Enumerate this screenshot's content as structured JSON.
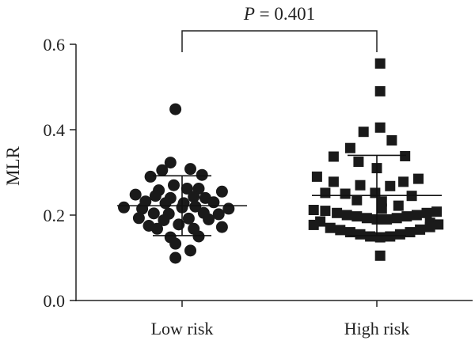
{
  "chart_data": {
    "type": "scatter",
    "subtype": "dot-plot",
    "title": "",
    "xlabel": "",
    "ylabel": "MLR",
    "ylim": [
      0,
      0.6
    ],
    "yticks": [
      0.0,
      0.2,
      0.4,
      0.6
    ],
    "ytick_labels": [
      "0.0",
      "0.2",
      "0.4",
      "0.6"
    ],
    "categories": [
      "Low risk",
      "High risk"
    ],
    "grid": false,
    "annotation": {
      "prefix": "P",
      "text": " = 0.401"
    },
    "series": [
      {
        "category": "Low risk",
        "marker": "circle",
        "color": "#1a1a1a",
        "mean": 0.222,
        "sd_upper": 0.292,
        "sd_lower": 0.152,
        "points": [
          {
            "x": -0.04,
            "y": 0.448
          },
          {
            "x": -0.07,
            "y": 0.323
          },
          {
            "x": 0.05,
            "y": 0.308
          },
          {
            "x": -0.12,
            "y": 0.305
          },
          {
            "x": 0.12,
            "y": 0.294
          },
          {
            "x": -0.19,
            "y": 0.29
          },
          {
            "x": -0.05,
            "y": 0.27
          },
          {
            "x": 0.03,
            "y": 0.262
          },
          {
            "x": 0.1,
            "y": 0.262
          },
          {
            "x": -0.14,
            "y": 0.258
          },
          {
            "x": 0.24,
            "y": 0.255
          },
          {
            "x": -0.28,
            "y": 0.248
          },
          {
            "x": -0.16,
            "y": 0.245
          },
          {
            "x": -0.07,
            "y": 0.24
          },
          {
            "x": 0.07,
            "y": 0.243
          },
          {
            "x": 0.14,
            "y": 0.24
          },
          {
            "x": -0.22,
            "y": 0.232
          },
          {
            "x": -0.1,
            "y": 0.228
          },
          {
            "x": 0.01,
            "y": 0.228
          },
          {
            "x": 0.19,
            "y": 0.23
          },
          {
            "x": -0.35,
            "y": 0.218
          },
          {
            "x": -0.24,
            "y": 0.215
          },
          {
            "x": 0.0,
            "y": 0.218
          },
          {
            "x": 0.08,
            "y": 0.22
          },
          {
            "x": 0.28,
            "y": 0.215
          },
          {
            "x": -0.17,
            "y": 0.204
          },
          {
            "x": -0.08,
            "y": 0.203
          },
          {
            "x": 0.13,
            "y": 0.205
          },
          {
            "x": 0.22,
            "y": 0.202
          },
          {
            "x": -0.26,
            "y": 0.193
          },
          {
            "x": -0.11,
            "y": 0.188
          },
          {
            "x": 0.04,
            "y": 0.192
          },
          {
            "x": 0.16,
            "y": 0.19
          },
          {
            "x": -0.2,
            "y": 0.175
          },
          {
            "x": -0.02,
            "y": 0.178
          },
          {
            "x": 0.24,
            "y": 0.172
          },
          {
            "x": -0.15,
            "y": 0.168
          },
          {
            "x": 0.07,
            "y": 0.168
          },
          {
            "x": -0.07,
            "y": 0.148
          },
          {
            "x": 0.1,
            "y": 0.15
          },
          {
            "x": -0.04,
            "y": 0.133
          },
          {
            "x": 0.05,
            "y": 0.117
          },
          {
            "x": -0.04,
            "y": 0.1
          }
        ]
      },
      {
        "category": "High risk",
        "marker": "square",
        "color": "#1a1a1a",
        "mean": 0.246,
        "sd_upper": 0.34,
        "sd_lower": 0.152,
        "points": [
          {
            "x": 0.02,
            "y": 0.555
          },
          {
            "x": 0.02,
            "y": 0.49
          },
          {
            "x": 0.02,
            "y": 0.405
          },
          {
            "x": -0.08,
            "y": 0.395
          },
          {
            "x": 0.09,
            "y": 0.375
          },
          {
            "x": -0.16,
            "y": 0.357
          },
          {
            "x": -0.26,
            "y": 0.337
          },
          {
            "x": 0.17,
            "y": 0.338
          },
          {
            "x": -0.11,
            "y": 0.325
          },
          {
            "x": 0.0,
            "y": 0.31
          },
          {
            "x": -0.36,
            "y": 0.29
          },
          {
            "x": 0.25,
            "y": 0.285
          },
          {
            "x": -0.26,
            "y": 0.278
          },
          {
            "x": 0.16,
            "y": 0.278
          },
          {
            "x": -0.1,
            "y": 0.27
          },
          {
            "x": 0.08,
            "y": 0.268
          },
          {
            "x": -0.31,
            "y": 0.252
          },
          {
            "x": -0.19,
            "y": 0.25
          },
          {
            "x": -0.01,
            "y": 0.252
          },
          {
            "x": 0.21,
            "y": 0.245
          },
          {
            "x": -0.12,
            "y": 0.235
          },
          {
            "x": 0.03,
            "y": 0.232
          },
          {
            "x": 0.13,
            "y": 0.222
          },
          {
            "x": 0.03,
            "y": 0.215
          },
          {
            "x": -0.38,
            "y": 0.212
          },
          {
            "x": -0.31,
            "y": 0.21
          },
          {
            "x": -0.24,
            "y": 0.205
          },
          {
            "x": -0.18,
            "y": 0.2
          },
          {
            "x": -0.12,
            "y": 0.197
          },
          {
            "x": -0.06,
            "y": 0.193
          },
          {
            "x": 0.0,
            "y": 0.19
          },
          {
            "x": 0.06,
            "y": 0.19
          },
          {
            "x": 0.12,
            "y": 0.193
          },
          {
            "x": 0.18,
            "y": 0.197
          },
          {
            "x": 0.24,
            "y": 0.2
          },
          {
            "x": 0.3,
            "y": 0.205
          },
          {
            "x": 0.36,
            "y": 0.208
          },
          {
            "x": -0.34,
            "y": 0.185
          },
          {
            "x": 0.32,
            "y": 0.182
          },
          {
            "x": -0.38,
            "y": 0.177
          },
          {
            "x": -0.28,
            "y": 0.17
          },
          {
            "x": -0.22,
            "y": 0.165
          },
          {
            "x": -0.16,
            "y": 0.16
          },
          {
            "x": -0.1,
            "y": 0.155
          },
          {
            "x": -0.04,
            "y": 0.15
          },
          {
            "x": 0.02,
            "y": 0.148
          },
          {
            "x": 0.08,
            "y": 0.15
          },
          {
            "x": 0.14,
            "y": 0.155
          },
          {
            "x": 0.2,
            "y": 0.16
          },
          {
            "x": 0.26,
            "y": 0.166
          },
          {
            "x": 0.32,
            "y": 0.172
          },
          {
            "x": 0.37,
            "y": 0.178
          },
          {
            "x": 0.02,
            "y": 0.105
          }
        ]
      }
    ]
  }
}
